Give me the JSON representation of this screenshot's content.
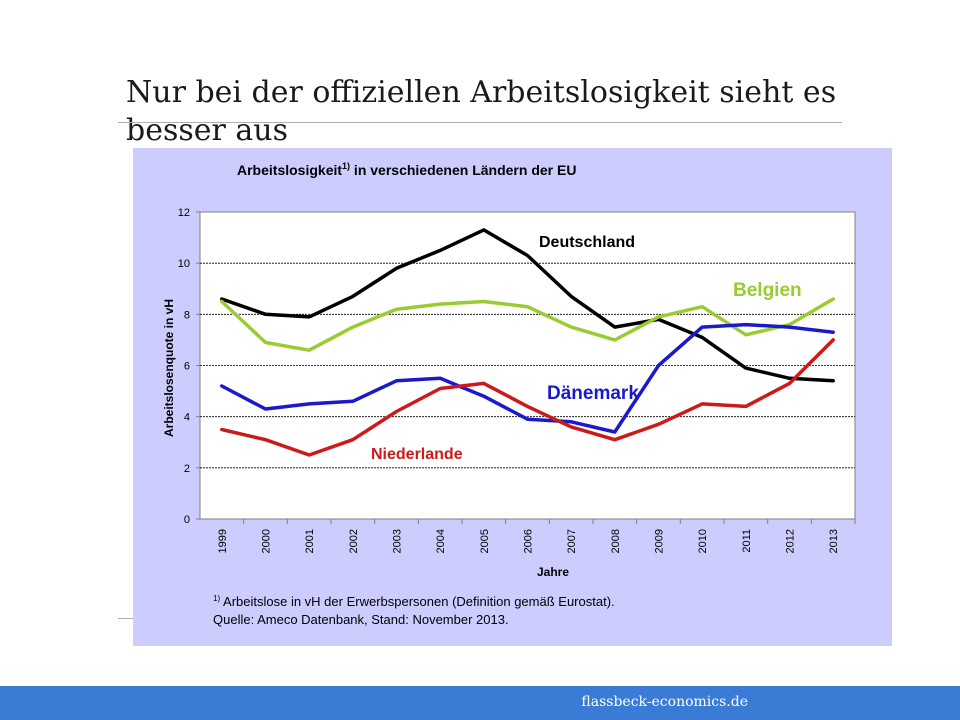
{
  "slide": {
    "title": "Nur bei der offiziellen Arbeitslosigkeit sieht es besser aus",
    "footer": "flassbeck-economics.de"
  },
  "colors": {
    "panel_bg": "#ccccff",
    "plot_bg": "#ffffff",
    "footer_bg": "#3a7bd5",
    "Deutschland": "#000000",
    "Belgien": "#99cc33",
    "Dänemark": "#1a1acc",
    "Niederlande": "#cc1a1a"
  },
  "chart_data": {
    "type": "line",
    "title": "Arbeitslosigkeit",
    "title_sup": "1)",
    "title_suffix": " in verschiedenen Ländern der EU",
    "xlabel": "Jahre",
    "ylabel": "Arbeitslosenquote in vH",
    "x": [
      "1999",
      "2000",
      "2001",
      "2002",
      "2003",
      "2004",
      "2005",
      "2006",
      "2007",
      "2008",
      "2009",
      "2010",
      "2011",
      "2012",
      "2013"
    ],
    "ylim": [
      0,
      12
    ],
    "yticks": [
      "0",
      "2",
      "4",
      "6",
      "8",
      "10",
      "12"
    ],
    "grid": true,
    "legend": "inline labels",
    "series": [
      {
        "name": "Deutschland",
        "color": "#000000",
        "values": [
          8.6,
          8.0,
          7.9,
          8.7,
          9.8,
          10.5,
          11.3,
          10.3,
          8.7,
          7.5,
          7.8,
          7.1,
          5.9,
          5.5,
          5.4
        ]
      },
      {
        "name": "Belgien",
        "color": "#99cc33",
        "values": [
          8.5,
          6.9,
          6.6,
          7.5,
          8.2,
          8.4,
          8.5,
          8.3,
          7.5,
          7.0,
          7.9,
          8.3,
          7.2,
          7.6,
          8.6
        ]
      },
      {
        "name": "Dänemark",
        "color": "#1a1acc",
        "values": [
          5.2,
          4.3,
          4.5,
          4.6,
          5.4,
          5.5,
          4.8,
          3.9,
          3.8,
          3.4,
          6.0,
          7.5,
          7.6,
          7.5,
          7.3
        ]
      },
      {
        "name": "Niederlande",
        "color": "#cc1a1a",
        "values": [
          3.5,
          3.1,
          2.5,
          3.1,
          4.2,
          5.1,
          5.3,
          4.4,
          3.6,
          3.1,
          3.7,
          4.5,
          4.4,
          5.3,
          7.0
        ]
      }
    ],
    "footnote_sup": "1)",
    "footnote_text": " Arbeitslose in vH der Erwerbspersonen (Definition gemäß Eurostat).",
    "source": "Quelle: Ameco Datenbank, Stand: November 2013."
  }
}
